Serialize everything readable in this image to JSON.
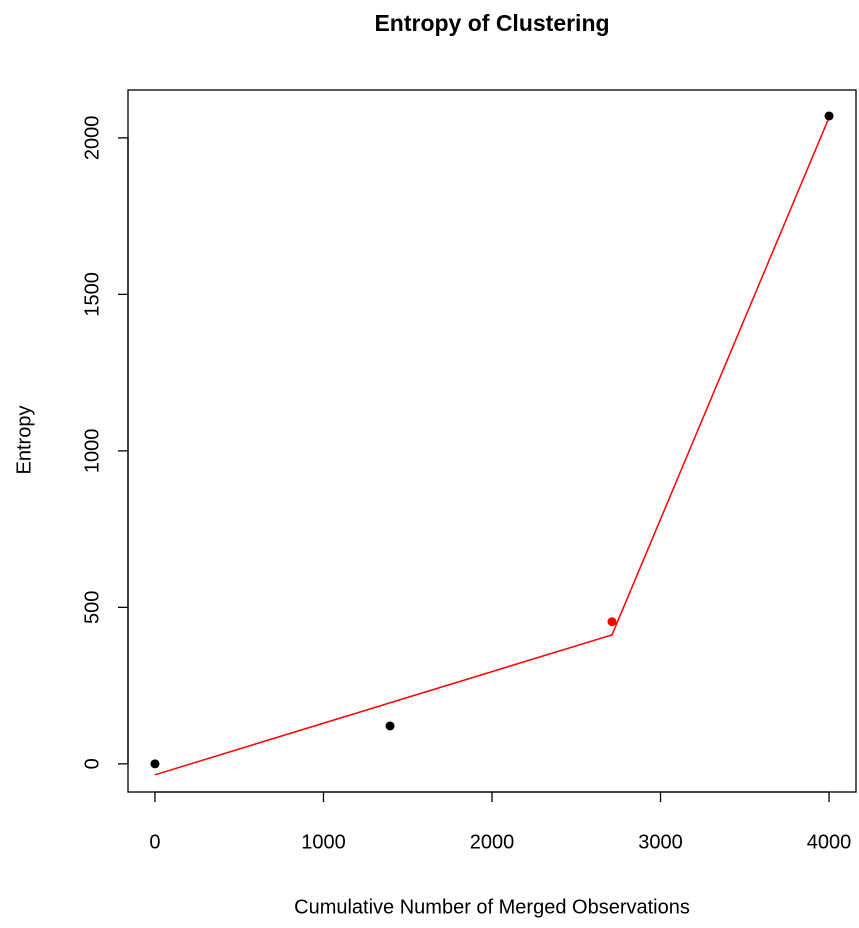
{
  "chart_data": {
    "type": "scatter",
    "title": "Entropy of Clustering",
    "x_label": "Cumulative Number of Merged Observations",
    "y_label": "Entropy",
    "xlim": [
      -160,
      4160
    ],
    "ylim": [
      -90,
      2153
    ],
    "xticks": [
      0,
      1000,
      2000,
      3000,
      4000
    ],
    "yticks": [
      0,
      500,
      1000,
      1500,
      2000
    ],
    "points": {
      "x": [
        0,
        1395,
        2712,
        4000
      ],
      "values": [
        0,
        121,
        454,
        2070
      ],
      "colors": [
        "#000000",
        "#000000",
        "#ff0000",
        "#000000"
      ]
    },
    "line": {
      "x": [
        0,
        2712,
        4000
      ],
      "values": [
        -35,
        412,
        2065
      ],
      "color": "#ff0000"
    }
  }
}
